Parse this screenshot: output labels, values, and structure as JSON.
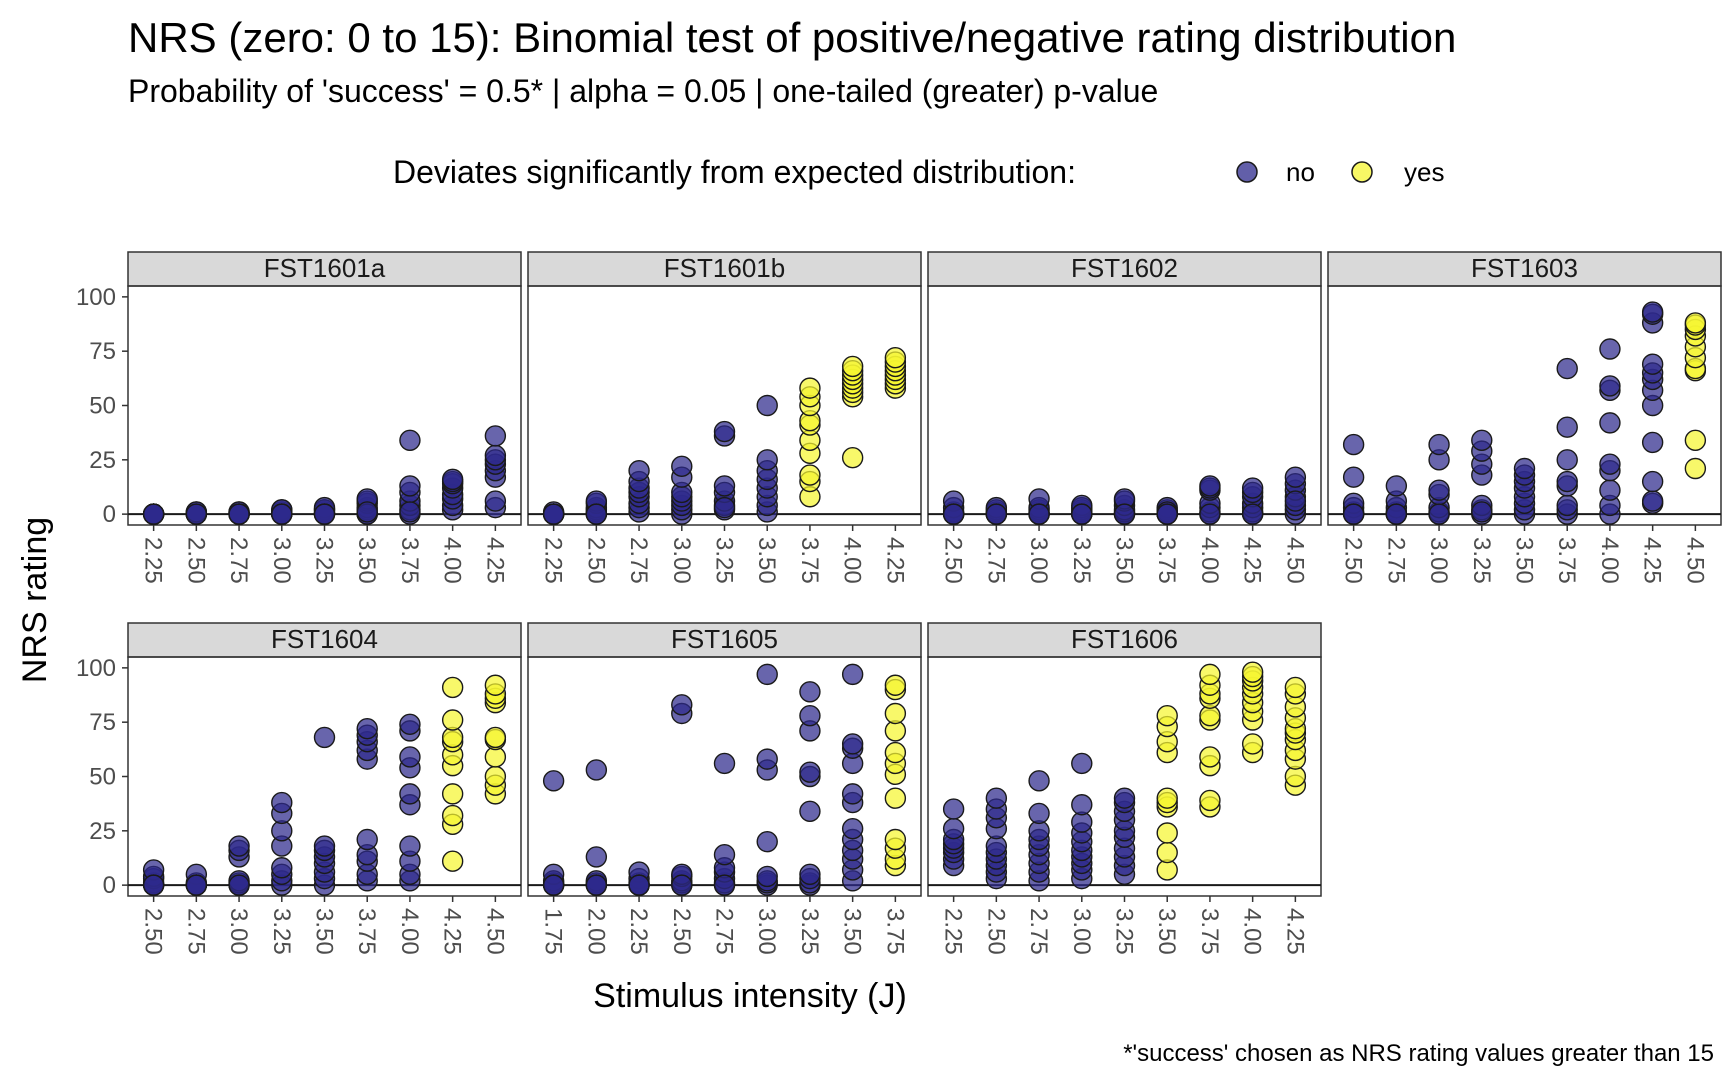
{
  "chart_data": {
    "type": "scatter",
    "title": "NRS (zero: 0 to 15): Binomial test of positive/negative rating distribution",
    "subtitle": "Probability of 'success' = 0.5* | alpha = 0.05 | one-tailed (greater) p-value",
    "caption": "*'success' chosen as NRS rating values greater than 15",
    "xlabel": "Stimulus intensity (J)",
    "ylabel": "NRS rating",
    "ylim": [
      -5,
      105
    ],
    "y_ticks": [
      0,
      25,
      50,
      75,
      100
    ],
    "grid": false,
    "legend": {
      "title": "Deviates significantly from expected distribution:",
      "position": "top",
      "entries": [
        {
          "label": "no",
          "color": "#2e2a8c"
        },
        {
          "label": "yes",
          "color": "#f5f531"
        }
      ]
    },
    "panels": [
      {
        "name": "FST1601a",
        "x_ticks": [
          "2.25",
          "2.50",
          "2.75",
          "3.00",
          "3.25",
          "3.50",
          "3.75",
          "4.00",
          "4.25"
        ],
        "points": [
          {
            "x": "2.25",
            "y": [
              0,
              0,
              0,
              0,
              0,
              0,
              0,
              0
            ],
            "sig": "no"
          },
          {
            "x": "2.50",
            "y": [
              0,
              0,
              0,
              0,
              0,
              1,
              1,
              0
            ],
            "sig": "no"
          },
          {
            "x": "2.75",
            "y": [
              0,
              0,
              1,
              1,
              0,
              0,
              0,
              0
            ],
            "sig": "no"
          },
          {
            "x": "3.00",
            "y": [
              0,
              0,
              1,
              2,
              2,
              0,
              0,
              0
            ],
            "sig": "no"
          },
          {
            "x": "3.25",
            "y": [
              0,
              1,
              2,
              2,
              3,
              0,
              0,
              0
            ],
            "sig": "no"
          },
          {
            "x": "3.50",
            "y": [
              0,
              2,
              3,
              5,
              6,
              7,
              0,
              1
            ],
            "sig": "no"
          },
          {
            "x": "3.75",
            "y": [
              0,
              2,
              4,
              6,
              10,
              13,
              34,
              1
            ],
            "sig": "no"
          },
          {
            "x": "4.00",
            "y": [
              2,
              4,
              7,
              9,
              12,
              14,
              15,
              16
            ],
            "sig": "no"
          },
          {
            "x": "4.25",
            "y": [
              3,
              6,
              17,
              20,
              23,
              25,
              27,
              36
            ],
            "sig": "no"
          }
        ]
      },
      {
        "name": "FST1601b",
        "x_ticks": [
          "2.25",
          "2.50",
          "2.75",
          "3.00",
          "3.25",
          "3.50",
          "3.75",
          "4.00",
          "4.25"
        ],
        "points": [
          {
            "x": "2.25",
            "y": [
              0,
              0,
              0,
              1,
              0,
              0,
              0,
              0
            ],
            "sig": "no"
          },
          {
            "x": "2.50",
            "y": [
              0,
              1,
              2,
              3,
              5,
              6,
              0,
              0
            ],
            "sig": "no"
          },
          {
            "x": "2.75",
            "y": [
              1,
              3,
              5,
              8,
              10,
              12,
              15,
              20
            ],
            "sig": "no"
          },
          {
            "x": "3.00",
            "y": [
              0,
              2,
              4,
              6,
              8,
              10,
              17,
              22
            ],
            "sig": "no"
          },
          {
            "x": "3.25",
            "y": [
              2,
              4,
              6,
              10,
              13,
              36,
              38,
              3
            ],
            "sig": "no"
          },
          {
            "x": "3.50",
            "y": [
              1,
              4,
              8,
              12,
              16,
              20,
              25,
              50
            ],
            "sig": "no"
          },
          {
            "x": "3.75",
            "y": [
              8,
              15,
              18,
              28,
              34,
              41,
              43,
              50,
              54,
              58
            ],
            "sig": "yes"
          },
          {
            "x": "4.00",
            "y": [
              26,
              54,
              56,
              58,
              60,
              62,
              64,
              66,
              68
            ],
            "sig": "yes"
          },
          {
            "x": "4.25",
            "y": [
              58,
              60,
              62,
              64,
              66,
              68,
              70,
              72
            ],
            "sig": "yes"
          }
        ]
      },
      {
        "name": "FST1602",
        "x_ticks": [
          "2.50",
          "2.75",
          "3.00",
          "3.25",
          "3.50",
          "3.75",
          "4.00",
          "4.25",
          "4.50"
        ],
        "points": [
          {
            "x": "2.50",
            "y": [
              0,
              0,
              0,
              1,
              3,
              6,
              0,
              0
            ],
            "sig": "no"
          },
          {
            "x": "2.75",
            "y": [
              0,
              0,
              0,
              1,
              2,
              3,
              0,
              0
            ],
            "sig": "no"
          },
          {
            "x": "3.00",
            "y": [
              0,
              0,
              1,
              2,
              3,
              7,
              0,
              0
            ],
            "sig": "no"
          },
          {
            "x": "3.25",
            "y": [
              0,
              0,
              1,
              2,
              3,
              4,
              0,
              0
            ],
            "sig": "no"
          },
          {
            "x": "3.50",
            "y": [
              0,
              0,
              1,
              2,
              4,
              6,
              7,
              0
            ],
            "sig": "no"
          },
          {
            "x": "3.75",
            "y": [
              0,
              0,
              1,
              2,
              3,
              1,
              0,
              0
            ],
            "sig": "no"
          },
          {
            "x": "4.00",
            "y": [
              0,
              1,
              3,
              5,
              11,
              12,
              13,
              0
            ],
            "sig": "no"
          },
          {
            "x": "4.25",
            "y": [
              0,
              1,
              3,
              5,
              8,
              10,
              12,
              0
            ],
            "sig": "no"
          },
          {
            "x": "4.50",
            "y": [
              0,
              2,
              4,
              8,
              11,
              14,
              17,
              6
            ],
            "sig": "no"
          }
        ]
      },
      {
        "name": "FST1603",
        "x_ticks": [
          "2.50",
          "2.75",
          "3.00",
          "3.25",
          "3.50",
          "3.75",
          "4.00",
          "4.25",
          "4.50"
        ],
        "points": [
          {
            "x": "2.50",
            "y": [
              0,
              1,
              3,
              5,
              17,
              32,
              0,
              0
            ],
            "sig": "no"
          },
          {
            "x": "2.75",
            "y": [
              0,
              0,
              1,
              3,
              6,
              13,
              0,
              0
            ],
            "sig": "no"
          },
          {
            "x": "3.00",
            "y": [
              0,
              1,
              3,
              9,
              11,
              25,
              32,
              0
            ],
            "sig": "no"
          },
          {
            "x": "3.25",
            "y": [
              0,
              2,
              4,
              18,
              23,
              29,
              34,
              1
            ],
            "sig": "no"
          },
          {
            "x": "3.50",
            "y": [
              0,
              2,
              5,
              8,
              12,
              15,
              18,
              21
            ],
            "sig": "no"
          },
          {
            "x": "3.75",
            "y": [
              0,
              2,
              4,
              13,
              15,
              25,
              40,
              67
            ],
            "sig": "no"
          },
          {
            "x": "4.00",
            "y": [
              0,
              4,
              11,
              20,
              23,
              42,
              57,
              59,
              76
            ],
            "sig": "no"
          },
          {
            "x": "4.25",
            "y": [
              5,
              6,
              15,
              33,
              50,
              57,
              62,
              65,
              69,
              88,
              92,
              93
            ],
            "sig": "no"
          },
          {
            "x": "4.50",
            "y": [
              21,
              34,
              66,
              67,
              72,
              77,
              82,
              85,
              87,
              88
            ],
            "sig": "yes"
          }
        ]
      },
      {
        "name": "FST1604",
        "x_ticks": [
          "2.50",
          "2.75",
          "3.00",
          "3.25",
          "3.50",
          "3.75",
          "4.00",
          "4.25",
          "4.50"
        ],
        "points": [
          {
            "x": "2.50",
            "y": [
              0,
              0,
              1,
              3,
              4,
              7,
              0,
              0
            ],
            "sig": "no"
          },
          {
            "x": "2.75",
            "y": [
              0,
              0,
              0,
              1,
              5,
              0,
              0,
              0
            ],
            "sig": "no"
          },
          {
            "x": "3.00",
            "y": [
              0,
              0,
              1,
              2,
              13,
              16,
              18,
              0
            ],
            "sig": "no"
          },
          {
            "x": "3.25",
            "y": [
              0,
              2,
              5,
              8,
              18,
              25,
              33,
              38
            ],
            "sig": "no"
          },
          {
            "x": "3.50",
            "y": [
              0,
              3,
              6,
              10,
              13,
              16,
              18,
              68
            ],
            "sig": "no"
          },
          {
            "x": "3.75",
            "y": [
              2,
              5,
              11,
              14,
              21,
              58,
              62,
              66,
              69,
              72
            ],
            "sig": "no"
          },
          {
            "x": "4.00",
            "y": [
              2,
              5,
              11,
              18,
              37,
              42,
              54,
              59,
              71,
              74
            ],
            "sig": "no"
          },
          {
            "x": "4.25",
            "y": [
              11,
              28,
              32,
              42,
              55,
              60,
              66,
              68,
              76,
              91
            ],
            "sig": "yes"
          },
          {
            "x": "4.50",
            "y": [
              42,
              46,
              50,
              59,
              67,
              68,
              84,
              86,
              88,
              92
            ],
            "sig": "yes"
          }
        ]
      },
      {
        "name": "FST1605",
        "x_ticks": [
          "1.75",
          "2.00",
          "2.25",
          "2.50",
          "2.75",
          "3.00",
          "3.25",
          "3.50",
          "3.75"
        ],
        "points": [
          {
            "x": "1.75",
            "y": [
              0,
              0,
              1,
              2,
              5,
              48,
              0,
              0
            ],
            "sig": "no"
          },
          {
            "x": "2.00",
            "y": [
              0,
              0,
              1,
              2,
              13,
              53,
              0,
              0
            ],
            "sig": "no"
          },
          {
            "x": "2.25",
            "y": [
              0,
              0,
              1,
              3,
              6,
              0,
              0,
              0
            ],
            "sig": "no"
          },
          {
            "x": "2.50",
            "y": [
              0,
              1,
              2,
              4,
              5,
              79,
              83,
              0
            ],
            "sig": "no"
          },
          {
            "x": "2.75",
            "y": [
              0,
              1,
              3,
              6,
              8,
              14,
              56,
              0
            ],
            "sig": "no"
          },
          {
            "x": "3.00",
            "y": [
              0,
              1,
              2,
              4,
              20,
              53,
              58,
              97
            ],
            "sig": "no"
          },
          {
            "x": "3.25",
            "y": [
              0,
              1,
              3,
              5,
              34,
              50,
              52,
              71,
              78,
              89
            ],
            "sig": "no"
          },
          {
            "x": "3.50",
            "y": [
              2,
              7,
              12,
              16,
              21,
              26,
              38,
              42,
              56,
              63,
              65,
              97
            ],
            "sig": "no"
          },
          {
            "x": "3.75",
            "y": [
              9,
              12,
              17,
              21,
              40,
              51,
              56,
              61,
              71,
              79,
              90,
              92
            ],
            "sig": "yes"
          }
        ]
      },
      {
        "name": "FST1606",
        "x_ticks": [
          "2.25",
          "2.50",
          "2.75",
          "3.00",
          "3.25",
          "3.50",
          "3.75",
          "4.00",
          "4.25"
        ],
        "points": [
          {
            "x": "2.25",
            "y": [
              9,
              12,
              15,
              17,
              19,
              21,
              26,
              35
            ],
            "sig": "no"
          },
          {
            "x": "2.50",
            "y": [
              3,
              6,
              9,
              12,
              15,
              18,
              26,
              31,
              35,
              40
            ],
            "sig": "no"
          },
          {
            "x": "2.75",
            "y": [
              2,
              6,
              10,
              14,
              18,
              21,
              25,
              33,
              48
            ],
            "sig": "no"
          },
          {
            "x": "3.00",
            "y": [
              3,
              7,
              10,
              13,
              16,
              20,
              24,
              29,
              37,
              56
            ],
            "sig": "no"
          },
          {
            "x": "3.25",
            "y": [
              5,
              9,
              13,
              17,
              22,
              25,
              30,
              34,
              38,
              40
            ],
            "sig": "no"
          },
          {
            "x": "3.50",
            "y": [
              7,
              15,
              24,
              36,
              38,
              40,
              61,
              66,
              73,
              78
            ],
            "sig": "yes"
          },
          {
            "x": "3.75",
            "y": [
              36,
              39,
              55,
              59,
              76,
              78,
              86,
              88,
              92,
              97
            ],
            "sig": "yes"
          },
          {
            "x": "4.00",
            "y": [
              61,
              65,
              76,
              80,
              84,
              88,
              91,
              94,
              96,
              98
            ],
            "sig": "yes"
          },
          {
            "x": "4.25",
            "y": [
              46,
              50,
              58,
              62,
              67,
              70,
              72,
              77,
              82,
              88,
              91
            ],
            "sig": "yes"
          }
        ]
      }
    ]
  }
}
